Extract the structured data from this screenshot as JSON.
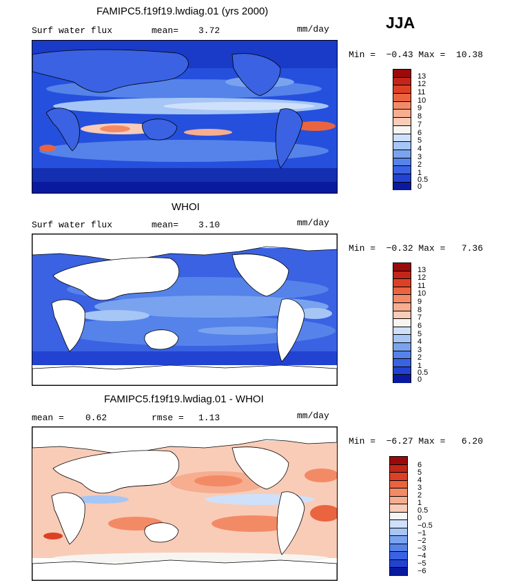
{
  "season": "JJA",
  "units": "mm/day",
  "panels": [
    {
      "title": "FAMIPC5.f19f19.lwdiag.01 (yrs 2000)",
      "left_label": "Surf water flux",
      "stat_label": "mean=",
      "stat_value": "3.72",
      "units": "mm/day",
      "minmax": "Min =  −0.43 Max =  10.38",
      "colorbar": {
        "labels": [
          "13",
          "12",
          "11",
          "10",
          "9",
          "8",
          "7",
          "6",
          "5",
          "4",
          "3",
          "2",
          "1",
          "0.5",
          "0"
        ],
        "colors": [
          "#9b0a0a",
          "#c2261a",
          "#dd4125",
          "#ea6440",
          "#f38a66",
          "#f6ad90",
          "#f9ccb7",
          "#f7f5f2",
          "#cfe0fb",
          "#a6c6f6",
          "#7aa3ef",
          "#5583ea",
          "#3a62e2",
          "#2243d2",
          "#0a1a9e"
        ]
      }
    },
    {
      "title": "WHOI",
      "left_label": "Surf water flux",
      "stat_label": "mean=",
      "stat_value": "3.10",
      "units": "mm/day",
      "minmax": "Min =  −0.32 Max =   7.36",
      "colorbar": {
        "labels": [
          "13",
          "12",
          "11",
          "10",
          "9",
          "8",
          "7",
          "6",
          "5",
          "4",
          "3",
          "2",
          "1",
          "0.5",
          "0"
        ],
        "colors": [
          "#9b0a0a",
          "#c2261a",
          "#dd4125",
          "#ea6440",
          "#f38a66",
          "#f6ad90",
          "#f9ccb7",
          "#f7f5f2",
          "#cfe0fb",
          "#a6c6f6",
          "#7aa3ef",
          "#5583ea",
          "#3a62e2",
          "#2243d2",
          "#0a1a9e"
        ]
      }
    },
    {
      "title": "FAMIPC5.f19f19.lwdiag.01 - WHOI",
      "left_label": "mean =",
      "left_value": "0.62",
      "stat_label": "rmse =",
      "stat_value": "1.13",
      "units": "mm/day",
      "minmax": "Min =  −6.27 Max =   6.20",
      "colorbar": {
        "labels": [
          "6",
          "5",
          "4",
          "3",
          "2",
          "1",
          "0.5",
          "0",
          "−0.5",
          "−1",
          "−2",
          "−3",
          "−4",
          "−5",
          "−6"
        ],
        "colors": [
          "#9b0a0a",
          "#c2261a",
          "#dd4125",
          "#ea6440",
          "#f38a66",
          "#f6ad90",
          "#f9ccb7",
          "#f7f5f2",
          "#cfe0fb",
          "#a6c6f6",
          "#7aa3ef",
          "#5583ea",
          "#3a62e2",
          "#2243d2",
          "#0a1a9e"
        ]
      }
    }
  ],
  "chart_data": [
    {
      "type": "heatmap",
      "title": "FAMIPC5.f19f19.lwdiag.01 (yrs 2000)",
      "variable": "Surf water flux",
      "units": "mm/day",
      "mean": 3.72,
      "min": -0.43,
      "max": 10.38,
      "levels": [
        0,
        0.5,
        1,
        2,
        3,
        4,
        5,
        6,
        7,
        8,
        9,
        10,
        11,
        12,
        13
      ]
    },
    {
      "type": "heatmap",
      "title": "WHOI",
      "variable": "Surf water flux",
      "units": "mm/day",
      "mean": 3.1,
      "min": -0.32,
      "max": 7.36,
      "levels": [
        0,
        0.5,
        1,
        2,
        3,
        4,
        5,
        6,
        7,
        8,
        9,
        10,
        11,
        12,
        13
      ]
    },
    {
      "type": "heatmap",
      "title": "FAMIPC5.f19f19.lwdiag.01 - WHOI",
      "units": "mm/day",
      "mean": 0.62,
      "rmse": 1.13,
      "min": -6.27,
      "max": 6.2,
      "levels": [
        -6,
        -5,
        -4,
        -3,
        -2,
        -1,
        -0.5,
        0,
        0.5,
        1,
        2,
        3,
        4,
        5,
        6
      ]
    }
  ]
}
